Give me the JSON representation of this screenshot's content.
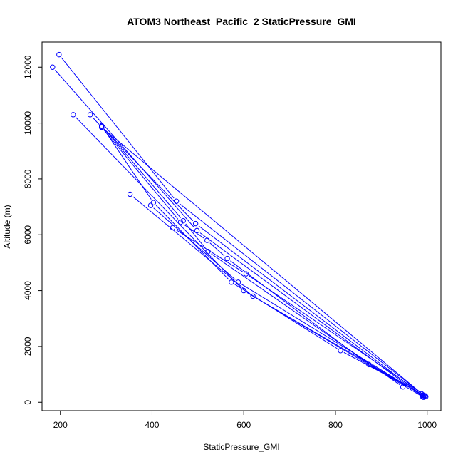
{
  "chart_data": {
    "type": "line",
    "title": "ATOM3 Northeast_Pacific_2 StaticPressure_GMI",
    "xlabel": "StaticPressure_GMI",
    "ylabel": "Altitude (m)",
    "xlim": [
      160,
      1030
    ],
    "ylim": [
      -300,
      12900
    ],
    "x_ticks": [
      {
        "value": 200,
        "label": "200"
      },
      {
        "value": 400,
        "label": "400"
      },
      {
        "value": 600,
        "label": "600"
      },
      {
        "value": 800,
        "label": "800"
      },
      {
        "value": 1000,
        "label": "1000"
      }
    ],
    "y_ticks": [
      {
        "value": 0,
        "label": "0"
      },
      {
        "value": 2000,
        "label": "2000"
      },
      {
        "value": 4000,
        "label": "4000"
      },
      {
        "value": 6000,
        "label": "6000"
      },
      {
        "value": 8000,
        "label": "8000"
      },
      {
        "value": 10000,
        "label": "10000"
      },
      {
        "value": 12000,
        "label": "12000"
      }
    ],
    "grid": false,
    "legend": "none",
    "color": "#0000ff",
    "series": [
      {
        "points": [
          [
            993,
            250
          ],
          [
            453,
            7200
          ],
          [
            197,
            12450
          ]
        ]
      },
      {
        "points": [
          [
            990,
            200
          ],
          [
            498,
            6150
          ],
          [
            183,
            12000
          ]
        ]
      },
      {
        "points": [
          [
            995,
            220
          ],
          [
            290,
            9850
          ],
          [
            265,
            10300
          ]
        ]
      },
      {
        "points": [
          [
            992,
            180
          ],
          [
            600,
            4000
          ],
          [
            228,
            10300
          ]
        ]
      },
      {
        "points": [
          [
            988,
            300
          ],
          [
            811,
            1850
          ],
          [
            573,
            4300
          ],
          [
            403,
            7150
          ],
          [
            290,
            9900
          ]
        ]
      },
      {
        "points": [
          [
            997,
            200
          ],
          [
            620,
            3800
          ],
          [
            352,
            7450
          ]
        ]
      },
      {
        "points": [
          [
            990,
            250
          ],
          [
            588,
            4300
          ],
          [
            397,
            7050
          ]
        ]
      },
      {
        "points": [
          [
            996,
            230
          ],
          [
            605,
            4600
          ],
          [
            445,
            6250
          ]
        ]
      },
      {
        "points": [
          [
            991,
            260
          ],
          [
            873,
            1350
          ],
          [
            564,
            5150
          ],
          [
            520,
            5800
          ],
          [
            462,
            6450
          ],
          [
            290,
            9850
          ]
        ]
      },
      {
        "points": [
          [
            947,
            550
          ],
          [
            522,
            5400
          ],
          [
            468,
            6500
          ],
          [
            290,
            9900
          ]
        ]
      },
      {
        "points": [
          [
            992,
            210
          ],
          [
            495,
            6400
          ],
          [
            290,
            9880
          ]
        ]
      }
    ]
  }
}
